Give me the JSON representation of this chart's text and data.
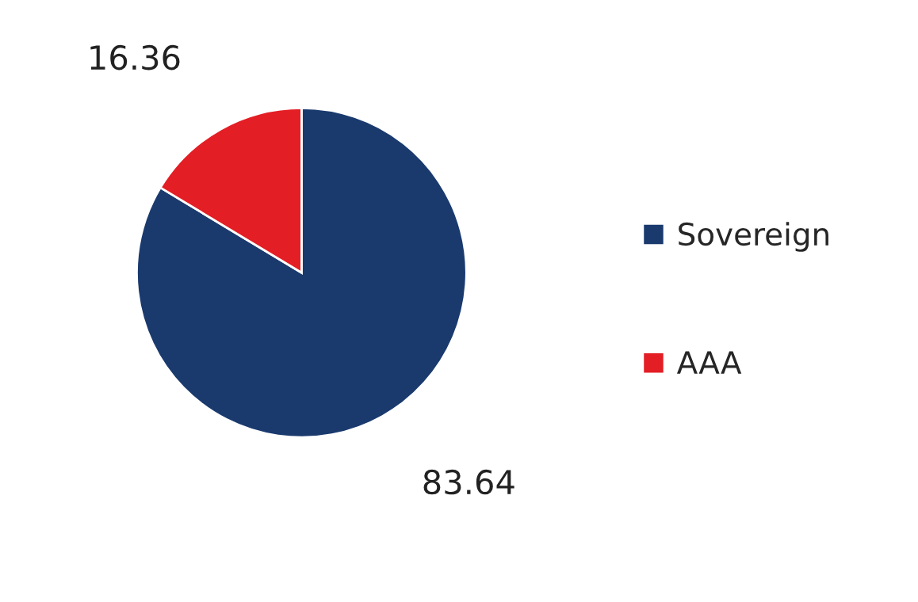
{
  "chart_data": {
    "type": "pie",
    "categories": [
      "Sovereign",
      "AAA"
    ],
    "values": [
      83.64,
      16.36
    ],
    "colors": [
      "#1a3a6e",
      "#e31e24"
    ],
    "data_labels": true,
    "legend": "right"
  }
}
